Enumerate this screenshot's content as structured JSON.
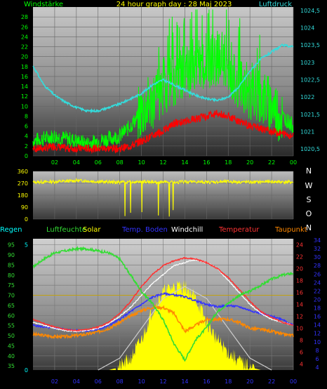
{
  "title": "24 hour graph day : 28 Maj 2023",
  "colors": {
    "wind": "#00ff00",
    "gust": "#ff0000",
    "pressure": "#33dddd",
    "direction": "#ffff00",
    "regen": "#00ffff",
    "humidity": "#33dd33",
    "solar": "#ffff00",
    "soil": "#3333ff",
    "windchill": "#ffffff",
    "temperature": "#ff3333",
    "dewpoint": "#ff8800"
  },
  "chart_data": [
    {
      "type": "line",
      "left_label": "Windstärke",
      "right_label": "Luftdruck",
      "x_ticks": [
        "02",
        "04",
        "06",
        "08",
        "10",
        "12",
        "14",
        "16",
        "18",
        "20",
        "22",
        "00"
      ],
      "left_ticks": [
        "0",
        "2",
        "4",
        "6",
        "8",
        "10",
        "12",
        "14",
        "16",
        "18",
        "20",
        "22",
        "24",
        "26",
        "28"
      ],
      "right_ticks": [
        "1020,5",
        "1021",
        "1021,5",
        "1022",
        "1022,5",
        "1023",
        "1023,5",
        "1024",
        "1024,5"
      ],
      "ylim_left": [
        0,
        30
      ],
      "ylim_right": [
        1020.3,
        1024.6
      ],
      "series": [
        {
          "axis": "right",
          "x": [
            0,
            1,
            2,
            3,
            4,
            5,
            6,
            7,
            8,
            9,
            10,
            11,
            12,
            13,
            14,
            15,
            16,
            17,
            18,
            19,
            20,
            21,
            22,
            23,
            24
          ],
          "y": [
            1022.9,
            1022.35,
            1022.05,
            1021.85,
            1021.7,
            1021.6,
            1021.6,
            1021.7,
            1021.8,
            1021.95,
            1022.1,
            1022.35,
            1022.5,
            1022.35,
            1022.2,
            1022.05,
            1021.95,
            1021.9,
            1022.0,
            1022.3,
            1022.75,
            1023.1,
            1023.3,
            1023.5,
            1023.45
          ]
        },
        {
          "axis": "left",
          "x": [
            0,
            1,
            2,
            3,
            4,
            5,
            6,
            7,
            8,
            9,
            10,
            11,
            12,
            13,
            14,
            15,
            16,
            17,
            18,
            19,
            20,
            21,
            22,
            23,
            24
          ],
          "y": [
            3,
            3.5,
            4,
            3.5,
            3,
            2.5,
            3,
            3.5,
            4,
            6,
            9,
            11,
            14,
            16,
            17,
            18,
            19,
            20,
            18,
            15,
            13,
            12,
            10,
            8,
            6
          ]
        },
        {
          "axis": "left",
          "x": [
            0,
            1,
            2,
            3,
            4,
            5,
            6,
            7,
            8,
            9,
            10,
            11,
            12,
            13,
            14,
            15,
            16,
            17,
            18,
            19,
            20,
            21,
            22,
            23,
            24
          ],
          "y": [
            1.5,
            1.5,
            2,
            1.5,
            1.5,
            1.5,
            1.5,
            1.5,
            1.5,
            2,
            3,
            4,
            5,
            6.5,
            7,
            7.5,
            8,
            8.5,
            8,
            7,
            6,
            5.5,
            5,
            4.5,
            4
          ]
        }
      ]
    },
    {
      "type": "line",
      "right_labels": [
        "N",
        "W",
        "S",
        "O",
        "N"
      ],
      "left_ticks": [
        "0",
        "90",
        "180",
        "270",
        "360"
      ],
      "ylim": [
        0,
        360
      ],
      "x": [
        0,
        1,
        2,
        3,
        4,
        5,
        6,
        7,
        8,
        9,
        10,
        11,
        12,
        13,
        14,
        15,
        16,
        17,
        18,
        19,
        20,
        21,
        22,
        23,
        24
      ],
      "y": [
        278,
        280,
        282,
        285,
        290,
        288,
        282,
        280,
        278,
        280,
        282,
        280,
        278,
        276,
        282,
        280,
        278,
        280,
        282,
        280,
        278,
        280,
        282,
        280,
        278
      ]
    },
    {
      "type": "line",
      "legend": [
        "Regen",
        "Luftfeuchte",
        "Solar",
        "Temp. Boden",
        "Windchill",
        "Temperatur",
        "Taupunkt"
      ],
      "x_ticks": [
        "02",
        "04",
        "06",
        "08",
        "10",
        "12",
        "14",
        "16",
        "18",
        "20",
        "22",
        "00"
      ],
      "left_ticks": [
        "35",
        "40",
        "45",
        "50",
        "55",
        "60",
        "65",
        "70",
        "75",
        "80",
        "85",
        "90",
        "95"
      ],
      "regen_ticks": [
        "0",
        "5"
      ],
      "temp_ticks": [
        "4",
        "6",
        "8",
        "10",
        "12",
        "14",
        "16",
        "18",
        "20",
        "22",
        "24"
      ],
      "right_ticks": [
        "4",
        "6",
        "8",
        "10",
        "12",
        "14",
        "16",
        "18",
        "20",
        "22",
        "24",
        "26",
        "28",
        "30",
        "32",
        "34"
      ],
      "ylim_humidity": [
        33,
        98
      ],
      "ylim_temp": [
        3,
        25
      ],
      "series": [
        {
          "name": "Luftfeuchte",
          "x": [
            0,
            1,
            2,
            3,
            4,
            5,
            6,
            7,
            8,
            9,
            10,
            11,
            12,
            13,
            14,
            15,
            16,
            17,
            18,
            19,
            20,
            21,
            22,
            23,
            24
          ],
          "y": [
            84,
            88,
            91,
            92,
            93,
            93,
            92,
            91,
            88,
            80,
            72,
            66,
            58,
            46,
            38,
            48,
            54,
            62,
            66,
            70,
            72,
            75,
            78,
            80,
            81
          ]
        },
        {
          "name": "Solar",
          "x": [
            0,
            1,
            2,
            3,
            4,
            5,
            6,
            7,
            8,
            9,
            10,
            11,
            12,
            13,
            14,
            15,
            16,
            17,
            18,
            19,
            20,
            21,
            22,
            23,
            24
          ],
          "y": [
            0,
            0,
            0,
            0,
            0,
            0,
            0,
            0,
            0.5,
            2,
            5,
            10,
            13,
            14,
            14,
            12,
            8,
            5,
            3,
            1.5,
            0.5,
            0,
            0,
            0,
            0
          ]
        },
        {
          "name": "Temp. Boden",
          "x": [
            0,
            1,
            2,
            3,
            4,
            5,
            6,
            7,
            8,
            9,
            10,
            11,
            12,
            13,
            14,
            15,
            16,
            17,
            18,
            19,
            20,
            21,
            22,
            23,
            24
          ],
          "y": [
            10.5,
            10.2,
            10,
            9.8,
            9.6,
            9.6,
            9.8,
            10.5,
            11.5,
            12.8,
            14,
            15.2,
            15.8,
            15.6,
            15.3,
            14.6,
            14,
            13.6,
            13.8,
            13.6,
            13,
            12.5,
            12,
            11.5,
            10.5
          ]
        },
        {
          "name": "Windchill",
          "x": [
            0,
            1,
            2,
            3,
            4,
            5,
            6,
            7,
            8,
            9,
            10,
            11,
            12,
            13,
            14,
            15,
            16,
            17,
            18,
            19,
            20,
            21,
            22,
            23,
            24
          ],
          "y": [
            11,
            10.5,
            10,
            9.6,
            9.5,
            9.6,
            10,
            10.8,
            12,
            13.5,
            15.5,
            17.5,
            19,
            20.5,
            21,
            21.5,
            21,
            20,
            18,
            16,
            14,
            12.5,
            11.5,
            11,
            10.5
          ]
        },
        {
          "name": "Temperatur",
          "x": [
            0,
            1,
            2,
            3,
            4,
            5,
            6,
            7,
            8,
            9,
            10,
            11,
            12,
            13,
            14,
            15,
            16,
            17,
            18,
            19,
            20,
            21,
            22,
            23,
            24
          ],
          "y": [
            11.5,
            10.8,
            10.2,
            9.8,
            9.6,
            9.8,
            10.2,
            11,
            12.5,
            14.5,
            17,
            19,
            20.5,
            21.3,
            21.8,
            21.6,
            21,
            20,
            18.5,
            16.5,
            14.5,
            12.8,
            11.8,
            11,
            10.5
          ]
        },
        {
          "name": "Taupunkt",
          "x": [
            0,
            1,
            2,
            3,
            4,
            5,
            6,
            7,
            8,
            9,
            10,
            11,
            12,
            13,
            14,
            15,
            16,
            17,
            18,
            19,
            20,
            21,
            22,
            23,
            24
          ],
          "y": [
            9,
            8.8,
            8.6,
            8.6,
            8.8,
            9,
            9.4,
            10,
            11,
            12,
            13,
            13.5,
            13.5,
            12.5,
            9.5,
            10.5,
            11.5,
            11.5,
            11.5,
            11,
            10,
            9.8,
            9.5,
            9,
            8.8
          ]
        },
        {
          "name": "Solar max",
          "x": [
            6,
            8,
            10,
            12,
            14,
            16,
            18,
            20,
            22
          ],
          "y": [
            0,
            2,
            7,
            12,
            14,
            12,
            7,
            2,
            0
          ]
        }
      ]
    }
  ]
}
